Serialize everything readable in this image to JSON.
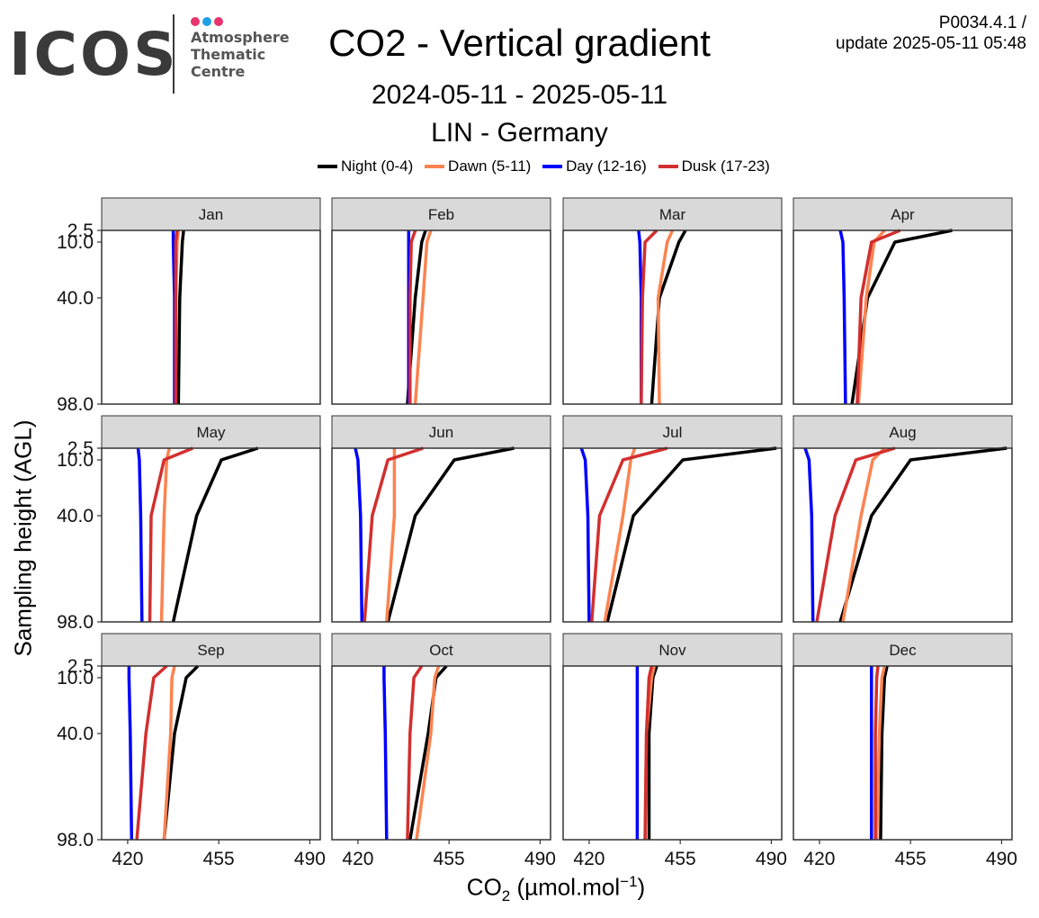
{
  "header": {
    "logo_text": "ICOS",
    "logo_subtitle_lines": [
      "Atmosphere",
      "Thematic",
      "Centre"
    ],
    "logo_dot_colors": [
      "#e8336d",
      "#1ea0e6",
      "#e8336d"
    ],
    "title": "CO2 - Vertical gradient",
    "version": "P0034.4.1 /",
    "update": "update  2025-05-11 05:48",
    "date_range": "2024-05-11 - 2025-05-11",
    "station": "LIN - Germany"
  },
  "chart_data": {
    "type": "line",
    "title": "CO2 - Vertical gradient",
    "ylabel": "Sampling height (AGL)",
    "xlabel_main": "CO",
    "xlabel_sub": "2",
    "xlabel_rest": " (µmol.mol",
    "xlabel_sup": "−1",
    "xlabel_end": ")",
    "xlim": [
      410,
      494
    ],
    "ylim": [
      2.5,
      98.0
    ],
    "xticks": [
      420,
      455,
      490
    ],
    "yticks": [
      2.5,
      10.0,
      40.0,
      98.0
    ],
    "ytick_labels": [
      "2.5",
      "10.0",
      "40.0",
      "98.0"
    ],
    "heights": [
      2.5,
      10.0,
      40.0,
      98.0
    ],
    "grid": false,
    "legend_position": "top",
    "series": [
      {
        "key": "night",
        "name": "Night (0-4)",
        "color": "#000000"
      },
      {
        "key": "dawn",
        "name": "Dawn (5-11)",
        "color": "#fb8350"
      },
      {
        "key": "day",
        "name": "Day (12-16)",
        "color": "#0000ff"
      },
      {
        "key": "dusk",
        "name": "Dusk (17-23)",
        "color": "#d32f2f"
      }
    ],
    "panels": [
      {
        "month": "Jan",
        "night": [
          441.5,
          441,
          440,
          439.5
        ],
        "dawn": [
          439.5,
          439,
          438.5,
          438.5
        ],
        "day": [
          437.5,
          437.5,
          438,
          438
        ],
        "dusk": [
          439,
          438.5,
          438.5,
          438.5
        ]
      },
      {
        "month": "Feb",
        "night": [
          446,
          444.5,
          442,
          439
        ],
        "dawn": [
          448,
          446.5,
          445,
          442
        ],
        "day": [
          439.5,
          439.5,
          439.5,
          439.5
        ],
        "dusk": [
          442,
          440.5,
          440,
          440
        ]
      },
      {
        "month": "Mar",
        "night": [
          457,
          454.5,
          447,
          444
        ],
        "dawn": [
          452,
          450,
          446.5,
          447
        ],
        "day": [
          439,
          439.5,
          440,
          440
        ],
        "dusk": [
          446,
          441.5,
          440.5,
          440
        ]
      },
      {
        "month": "Apr",
        "night": [
          471,
          449,
          438.5,
          432.5
        ],
        "dawn": [
          445,
          441,
          438,
          435
        ],
        "day": [
          428,
          429,
          429.5,
          430
        ],
        "dusk": [
          451,
          440,
          436,
          434.5
        ]
      },
      {
        "month": "May",
        "night": [
          470,
          456,
          446.5,
          437.5
        ],
        "dawn": [
          436,
          435,
          434,
          433
        ],
        "day": [
          424,
          424.5,
          425,
          425.5
        ],
        "dusk": [
          445,
          434,
          429,
          428.5
        ]
      },
      {
        "month": "Jun",
        "night": [
          480,
          457,
          442,
          431.5
        ],
        "dawn": [
          434,
          434,
          434,
          431
        ],
        "day": [
          419,
          420,
          421,
          421.5
        ],
        "dusk": [
          445,
          431.5,
          425.5,
          422.5
        ]
      },
      {
        "month": "Jul",
        "night": [
          492,
          456,
          437,
          427
        ],
        "dawn": [
          437.5,
          436,
          433,
          426
        ],
        "day": [
          417,
          418.5,
          419.5,
          420
        ],
        "dusk": [
          450,
          433,
          424,
          421
        ]
      },
      {
        "month": "Aug",
        "night": [
          492,
          455,
          440,
          428
        ],
        "dawn": [
          445,
          440.5,
          436,
          429
        ],
        "day": [
          414.5,
          416,
          417,
          417.5
        ],
        "dusk": [
          449,
          434,
          426,
          419
        ]
      },
      {
        "month": "Sep",
        "night": [
          447,
          442.5,
          438,
          434
        ],
        "dawn": [
          438,
          437,
          436.5,
          434
        ],
        "day": [
          420.5,
          420.5,
          421,
          421.5
        ],
        "dusk": [
          435,
          430,
          427,
          423.5
        ]
      },
      {
        "month": "Oct",
        "night": [
          454,
          450,
          447,
          440
        ],
        "dawn": [
          451,
          449.5,
          448,
          442.5
        ],
        "day": [
          430,
          430,
          430.5,
          431
        ],
        "dusk": [
          444.5,
          441.5,
          440,
          439
        ]
      },
      {
        "month": "Nov",
        "night": [
          446,
          444.5,
          443,
          443
        ],
        "dawn": [
          445,
          444,
          442,
          441.5
        ],
        "day": [
          438.5,
          438.5,
          438.5,
          438.5
        ],
        "dusk": [
          444,
          443,
          442,
          441.5
        ]
      },
      {
        "month": "Dec",
        "night": [
          446,
          445,
          444,
          443.5
        ],
        "dawn": [
          445,
          444,
          443,
          442
        ],
        "day": [
          440,
          440,
          440,
          440
        ],
        "dusk": [
          442.5,
          442,
          441.5,
          441.5
        ]
      }
    ]
  }
}
